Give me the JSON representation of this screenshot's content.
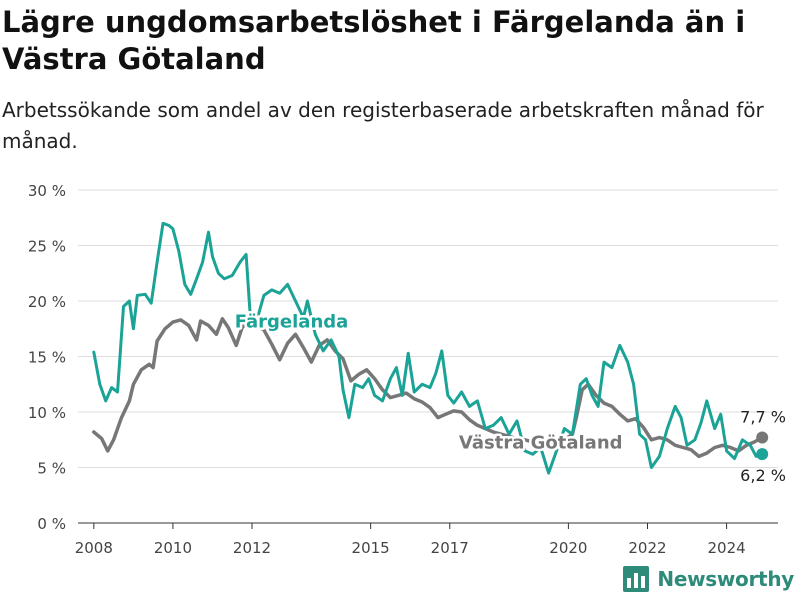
{
  "header": {
    "title": "Lägre ungdomsarbetslöshet i Färgelanda än i Västra Götaland",
    "subtitle": "Arbetssökande som andel av den registerbaserade arbetskraften månad för månad."
  },
  "brand": {
    "name": "Newsworthy",
    "icon": "bar-chart-logo-icon",
    "color": "#2e8b7a"
  },
  "chart_data": {
    "type": "line",
    "ylim": [
      0,
      30
    ],
    "xlim": [
      2007.6,
      2025.3
    ],
    "yticks": [
      0,
      5,
      10,
      15,
      20,
      25,
      30
    ],
    "ytick_labels": [
      "0 %",
      "5 %",
      "10 %",
      "15 %",
      "20 %",
      "25 %",
      "30 %"
    ],
    "xticks": [
      2008,
      2010,
      2012,
      2015,
      2017,
      2020,
      2022,
      2024
    ],
    "xtick_labels": [
      "2008",
      "2010",
      "2012",
      "2015",
      "2017",
      "2020",
      "2022",
      "2024"
    ],
    "grid": true,
    "series": [
      {
        "name": "Västra Götaland",
        "color": "#777777",
        "end_label": "7,7 %",
        "points": [
          [
            2008.0,
            8.2
          ],
          [
            2008.2,
            7.6
          ],
          [
            2008.35,
            6.5
          ],
          [
            2008.5,
            7.5
          ],
          [
            2008.7,
            9.5
          ],
          [
            2008.9,
            11.0
          ],
          [
            2009.0,
            12.5
          ],
          [
            2009.2,
            13.8
          ],
          [
            2009.4,
            14.3
          ],
          [
            2009.5,
            14.0
          ],
          [
            2009.6,
            16.4
          ],
          [
            2009.8,
            17.5
          ],
          [
            2010.0,
            18.1
          ],
          [
            2010.2,
            18.3
          ],
          [
            2010.4,
            17.8
          ],
          [
            2010.6,
            16.5
          ],
          [
            2010.7,
            18.2
          ],
          [
            2010.9,
            17.8
          ],
          [
            2011.1,
            17.0
          ],
          [
            2011.25,
            18.4
          ],
          [
            2011.4,
            17.6
          ],
          [
            2011.6,
            16.0
          ],
          [
            2011.75,
            17.6
          ],
          [
            2011.9,
            18.2
          ],
          [
            2012.1,
            17.8
          ],
          [
            2012.3,
            17.4
          ],
          [
            2012.5,
            16.1
          ],
          [
            2012.7,
            14.7
          ],
          [
            2012.9,
            16.2
          ],
          [
            2013.1,
            17.0
          ],
          [
            2013.3,
            15.8
          ],
          [
            2013.5,
            14.5
          ],
          [
            2013.7,
            16.0
          ],
          [
            2013.9,
            16.5
          ],
          [
            2014.1,
            15.5
          ],
          [
            2014.3,
            14.8
          ],
          [
            2014.5,
            12.8
          ],
          [
            2014.7,
            13.4
          ],
          [
            2014.9,
            13.8
          ],
          [
            2015.1,
            13.0
          ],
          [
            2015.3,
            12.0
          ],
          [
            2015.5,
            11.3
          ],
          [
            2015.7,
            11.5
          ],
          [
            2015.9,
            11.7
          ],
          [
            2016.1,
            11.2
          ],
          [
            2016.3,
            10.9
          ],
          [
            2016.5,
            10.4
          ],
          [
            2016.7,
            9.5
          ],
          [
            2016.9,
            9.8
          ],
          [
            2017.1,
            10.1
          ],
          [
            2017.3,
            10.0
          ],
          [
            2017.5,
            9.3
          ],
          [
            2017.7,
            8.8
          ],
          [
            2017.9,
            8.5
          ],
          [
            2018.1,
            8.2
          ],
          [
            2018.3,
            8.0
          ],
          [
            2018.5,
            7.8
          ],
          [
            2018.7,
            7.6
          ],
          [
            2018.9,
            7.5
          ],
          [
            2019.1,
            7.3
          ],
          [
            2019.3,
            7.0
          ],
          [
            2019.5,
            7.2
          ],
          [
            2019.7,
            7.0
          ],
          [
            2019.9,
            7.5
          ],
          [
            2020.1,
            8.0
          ],
          [
            2020.2,
            9.5
          ],
          [
            2020.35,
            12.0
          ],
          [
            2020.5,
            12.5
          ],
          [
            2020.7,
            11.5
          ],
          [
            2020.9,
            10.8
          ],
          [
            2021.1,
            10.5
          ],
          [
            2021.3,
            9.8
          ],
          [
            2021.5,
            9.2
          ],
          [
            2021.7,
            9.4
          ],
          [
            2021.9,
            8.6
          ],
          [
            2022.1,
            7.5
          ],
          [
            2022.3,
            7.7
          ],
          [
            2022.5,
            7.5
          ],
          [
            2022.7,
            7.0
          ],
          [
            2022.9,
            6.8
          ],
          [
            2023.1,
            6.6
          ],
          [
            2023.3,
            6.0
          ],
          [
            2023.5,
            6.3
          ],
          [
            2023.7,
            6.8
          ],
          [
            2023.9,
            7.0
          ],
          [
            2024.1,
            6.8
          ],
          [
            2024.3,
            6.5
          ],
          [
            2024.5,
            7.0
          ],
          [
            2024.7,
            7.3
          ],
          [
            2024.9,
            7.7
          ]
        ]
      },
      {
        "name": "Färgelanda",
        "color": "#1aa396",
        "end_label": "6,2 %",
        "points": [
          [
            2008.0,
            15.4
          ],
          [
            2008.15,
            12.5
          ],
          [
            2008.3,
            11.0
          ],
          [
            2008.45,
            12.2
          ],
          [
            2008.6,
            11.8
          ],
          [
            2008.75,
            19.5
          ],
          [
            2008.9,
            20.0
          ],
          [
            2009.0,
            17.5
          ],
          [
            2009.1,
            20.5
          ],
          [
            2009.3,
            20.6
          ],
          [
            2009.45,
            19.8
          ],
          [
            2009.6,
            23.5
          ],
          [
            2009.75,
            27.0
          ],
          [
            2009.9,
            26.8
          ],
          [
            2010.0,
            26.5
          ],
          [
            2010.15,
            24.5
          ],
          [
            2010.3,
            21.5
          ],
          [
            2010.45,
            20.6
          ],
          [
            2010.6,
            22.0
          ],
          [
            2010.75,
            23.5
          ],
          [
            2010.9,
            26.2
          ],
          [
            2011.0,
            24.0
          ],
          [
            2011.15,
            22.5
          ],
          [
            2011.3,
            22.0
          ],
          [
            2011.5,
            22.3
          ],
          [
            2011.7,
            23.5
          ],
          [
            2011.85,
            24.2
          ],
          [
            2011.95,
            19.0
          ],
          [
            2012.1,
            18.0
          ],
          [
            2012.3,
            20.5
          ],
          [
            2012.5,
            21.0
          ],
          [
            2012.7,
            20.7
          ],
          [
            2012.9,
            21.5
          ],
          [
            2013.1,
            20.0
          ],
          [
            2013.3,
            18.5
          ],
          [
            2013.4,
            20.0
          ],
          [
            2013.6,
            17.0
          ],
          [
            2013.8,
            15.5
          ],
          [
            2014.0,
            16.5
          ],
          [
            2014.2,
            15.0
          ],
          [
            2014.3,
            12.0
          ],
          [
            2014.45,
            9.5
          ],
          [
            2014.6,
            12.5
          ],
          [
            2014.8,
            12.2
          ],
          [
            2014.95,
            13.0
          ],
          [
            2015.1,
            11.5
          ],
          [
            2015.3,
            11.0
          ],
          [
            2015.5,
            13.0
          ],
          [
            2015.65,
            14.0
          ],
          [
            2015.8,
            11.5
          ],
          [
            2015.95,
            15.3
          ],
          [
            2016.1,
            11.8
          ],
          [
            2016.3,
            12.5
          ],
          [
            2016.5,
            12.2
          ],
          [
            2016.65,
            13.5
          ],
          [
            2016.8,
            15.5
          ],
          [
            2016.95,
            11.5
          ],
          [
            2017.1,
            10.8
          ],
          [
            2017.3,
            11.8
          ],
          [
            2017.5,
            10.5
          ],
          [
            2017.7,
            11.0
          ],
          [
            2017.9,
            8.5
          ],
          [
            2018.1,
            8.8
          ],
          [
            2018.3,
            9.5
          ],
          [
            2018.5,
            8.0
          ],
          [
            2018.7,
            9.2
          ],
          [
            2018.9,
            6.5
          ],
          [
            2019.1,
            6.2
          ],
          [
            2019.3,
            6.8
          ],
          [
            2019.5,
            4.5
          ],
          [
            2019.7,
            6.5
          ],
          [
            2019.9,
            8.5
          ],
          [
            2020.1,
            8.0
          ],
          [
            2020.3,
            12.5
          ],
          [
            2020.45,
            13.0
          ],
          [
            2020.6,
            11.5
          ],
          [
            2020.75,
            10.5
          ],
          [
            2020.9,
            14.5
          ],
          [
            2021.1,
            14.0
          ],
          [
            2021.3,
            16.0
          ],
          [
            2021.5,
            14.5
          ],
          [
            2021.65,
            12.5
          ],
          [
            2021.8,
            8.0
          ],
          [
            2021.95,
            7.5
          ],
          [
            2022.1,
            5.0
          ],
          [
            2022.3,
            6.0
          ],
          [
            2022.5,
            8.5
          ],
          [
            2022.7,
            10.5
          ],
          [
            2022.85,
            9.5
          ],
          [
            2023.0,
            7.0
          ],
          [
            2023.2,
            7.5
          ],
          [
            2023.35,
            9.0
          ],
          [
            2023.5,
            11.0
          ],
          [
            2023.7,
            8.5
          ],
          [
            2023.85,
            9.8
          ],
          [
            2024.0,
            6.5
          ],
          [
            2024.2,
            5.8
          ],
          [
            2024.4,
            7.5
          ],
          [
            2024.6,
            7.0
          ],
          [
            2024.75,
            6.0
          ],
          [
            2024.9,
            6.2
          ]
        ]
      }
    ],
    "series_labels": [
      {
        "text": "Färgelanda",
        "series": 1,
        "at": [
          2013.0,
          17.6
        ]
      },
      {
        "text": "Västra Götaland",
        "series": 0,
        "at": [
          2019.3,
          6.7
        ]
      }
    ]
  }
}
